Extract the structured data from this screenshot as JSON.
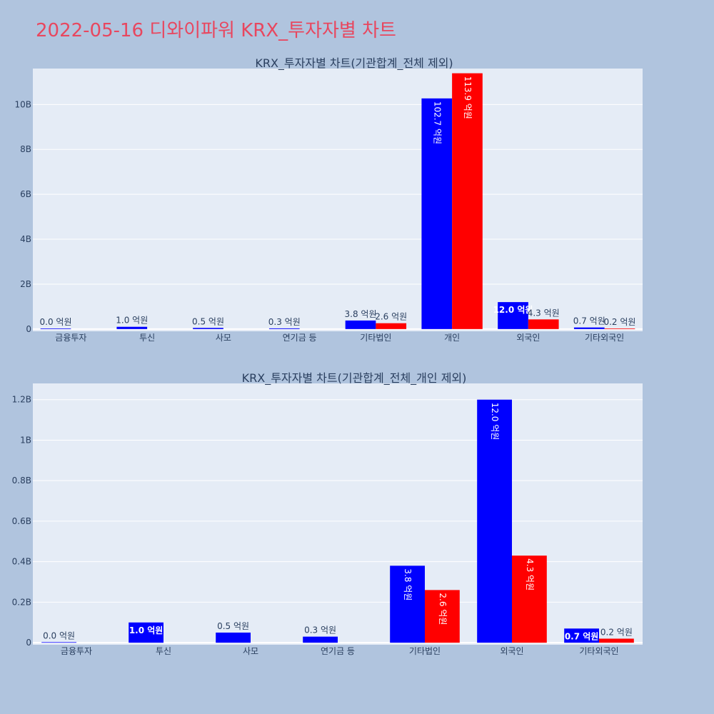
{
  "title": "2022-05-16 디와이파워 KRX_투자자별 차트",
  "colors": {
    "page_bg": "#b0c4de",
    "plot_bg": "#e5ecf6",
    "title": "#e8475f",
    "buy": "#0000ff",
    "sell": "#ff0000",
    "text": "#2a3f5f"
  },
  "chart_data": [
    {
      "type": "bar",
      "title": "KRX_투자자별 차트(기관합계_전체 제외)",
      "categories": [
        "금융투자",
        "투신",
        "사모",
        "연기금 등",
        "기타법인",
        "개인",
        "외국인",
        "기타외국인"
      ],
      "series": [
        {
          "values": [
            0.0,
            1.0,
            0.5,
            0.3,
            3.8,
            102.7,
            12.0,
            0.7
          ],
          "labels": [
            "0.0 억원",
            "1.0 억원",
            "0.5 억원",
            "0.3 억원",
            "3.8 억원",
            "102.7 억원",
            "12.0 억원",
            "0.7 억원"
          ]
        },
        {
          "values": [
            null,
            null,
            null,
            null,
            2.6,
            113.9,
            4.3,
            0.2
          ],
          "labels": [
            "",
            "",
            "",
            "",
            "2.6 억원",
            "113.9 억원",
            "4.3 억원",
            "0.2 억원"
          ]
        }
      ],
      "yticks": [
        "0",
        "2B",
        "4B",
        "6B",
        "8B",
        "10B"
      ],
      "ytick_values": [
        0,
        20,
        40,
        60,
        80,
        100
      ],
      "ylim": [
        -1,
        116
      ],
      "grid": true
    },
    {
      "type": "bar",
      "title": "KRX_투자자별 차트(기관합계_전체_개인 제외)",
      "categories": [
        "금융투자",
        "투신",
        "사모",
        "연기금 등",
        "기타법인",
        "외국인",
        "기타외국인"
      ],
      "series": [
        {
          "values": [
            0.0,
            1.0,
            0.5,
            0.3,
            3.8,
            12.0,
            0.7
          ],
          "labels": [
            "0.0 억원",
            "1.0 억원",
            "0.5 억원",
            "0.3 억원",
            "3.8 억원",
            "12.0 억원",
            "0.7 억원"
          ]
        },
        {
          "values": [
            null,
            null,
            null,
            null,
            2.6,
            4.3,
            0.2
          ],
          "labels": [
            "",
            "",
            "",
            "",
            "2.6 억원",
            "4.3 억원",
            "0.2 억원"
          ]
        }
      ],
      "yticks": [
        "0",
        "0.2B",
        "0.4B",
        "0.6B",
        "0.8B",
        "1B",
        "1.2B"
      ],
      "ytick_values": [
        0,
        2,
        4,
        6,
        8,
        10,
        12
      ],
      "ylim": [
        -0.1,
        12.8
      ],
      "grid": true
    }
  ]
}
